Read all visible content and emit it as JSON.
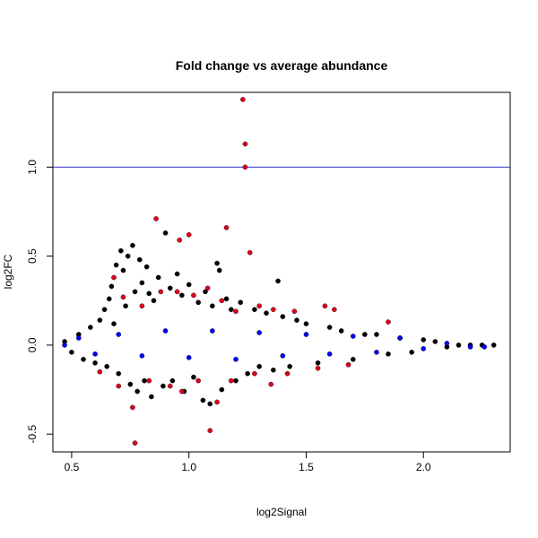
{
  "chart_data": {
    "type": "scatter",
    "title": "Fold change vs average abundance",
    "xlabel": "log2Signal",
    "ylabel": "log2FC",
    "xlim": [
      0.42,
      2.37
    ],
    "ylim": [
      -0.6,
      1.42
    ],
    "xticks": [
      0.5,
      1.0,
      1.5,
      2.0
    ],
    "xtick_labels": [
      "0.5",
      "1.0",
      "1.5",
      "2.0"
    ],
    "yticks": [
      -0.5,
      0.0,
      0.5,
      1.0
    ],
    "ytick_labels": [
      "-0.5",
      "0.0",
      "0.5",
      "1.0"
    ],
    "reference_line": {
      "orientation": "horizontal",
      "y": 1.0,
      "color": "#3333cc"
    },
    "grid": false,
    "legend": "none",
    "colors": {
      "black": "#000000",
      "red": "#e3001b",
      "blue": "#0000ff"
    },
    "series": [
      {
        "color": "black",
        "points": [
          [
            0.47,
            0.02
          ],
          [
            0.5,
            -0.04
          ],
          [
            0.53,
            0.06
          ],
          [
            0.55,
            -0.08
          ],
          [
            0.58,
            0.1
          ],
          [
            0.6,
            -0.1
          ],
          [
            0.62,
            0.14
          ],
          [
            0.64,
            0.2
          ],
          [
            0.65,
            -0.12
          ],
          [
            0.66,
            0.26
          ],
          [
            0.67,
            0.33
          ],
          [
            0.68,
            0.12
          ],
          [
            0.69,
            0.45
          ],
          [
            0.7,
            -0.16
          ],
          [
            0.71,
            0.53
          ],
          [
            0.72,
            0.42
          ],
          [
            0.73,
            0.22
          ],
          [
            0.74,
            0.5
          ],
          [
            0.75,
            -0.22
          ],
          [
            0.76,
            0.56
          ],
          [
            0.77,
            0.3
          ],
          [
            0.78,
            -0.26
          ],
          [
            0.79,
            0.48
          ],
          [
            0.8,
            0.35
          ],
          [
            0.81,
            -0.2
          ],
          [
            0.82,
            0.44
          ],
          [
            0.83,
            0.29
          ],
          [
            0.84,
            -0.29
          ],
          [
            0.85,
            0.25
          ],
          [
            0.87,
            0.38
          ],
          [
            0.89,
            -0.23
          ],
          [
            0.9,
            0.63
          ],
          [
            0.92,
            0.32
          ],
          [
            0.93,
            -0.2
          ],
          [
            0.95,
            0.4
          ],
          [
            0.97,
            0.28
          ],
          [
            0.98,
            -0.26
          ],
          [
            1.0,
            0.34
          ],
          [
            1.02,
            -0.18
          ],
          [
            1.04,
            0.24
          ],
          [
            1.06,
            -0.31
          ],
          [
            1.07,
            0.3
          ],
          [
            1.09,
            -0.33
          ],
          [
            1.1,
            0.22
          ],
          [
            1.12,
            0.46
          ],
          [
            1.13,
            0.42
          ],
          [
            1.14,
            -0.25
          ],
          [
            1.16,
            0.26
          ],
          [
            1.18,
            0.2
          ],
          [
            1.2,
            -0.2
          ],
          [
            1.22,
            0.24
          ],
          [
            1.25,
            -0.16
          ],
          [
            1.28,
            0.2
          ],
          [
            1.3,
            -0.12
          ],
          [
            1.33,
            0.18
          ],
          [
            1.36,
            -0.14
          ],
          [
            1.38,
            0.36
          ],
          [
            1.4,
            0.16
          ],
          [
            1.43,
            -0.12
          ],
          [
            1.46,
            0.14
          ],
          [
            1.5,
            0.12
          ],
          [
            1.55,
            -0.1
          ],
          [
            1.6,
            0.1
          ],
          [
            1.65,
            0.08
          ],
          [
            1.7,
            -0.08
          ],
          [
            1.75,
            0.06
          ],
          [
            1.8,
            0.06
          ],
          [
            1.85,
            -0.05
          ],
          [
            1.9,
            0.04
          ],
          [
            1.95,
            -0.04
          ],
          [
            2.0,
            0.03
          ],
          [
            2.05,
            0.02
          ],
          [
            2.1,
            -0.01
          ],
          [
            2.15,
            0.0
          ],
          [
            2.2,
            0.0
          ],
          [
            2.25,
            0.0
          ],
          [
            2.3,
            0.0
          ]
        ]
      },
      {
        "color": "red",
        "points": [
          [
            1.23,
            1.38
          ],
          [
            1.24,
            1.13
          ],
          [
            1.24,
            1.0
          ],
          [
            0.86,
            0.71
          ],
          [
            1.16,
            0.66
          ],
          [
            1.0,
            0.62
          ],
          [
            0.96,
            0.59
          ],
          [
            1.26,
            0.52
          ],
          [
            0.68,
            0.38
          ],
          [
            0.72,
            0.27
          ],
          [
            0.8,
            0.22
          ],
          [
            0.88,
            0.3
          ],
          [
            0.95,
            0.3
          ],
          [
            1.02,
            0.28
          ],
          [
            1.08,
            0.32
          ],
          [
            1.14,
            0.25
          ],
          [
            1.2,
            0.19
          ],
          [
            1.3,
            0.22
          ],
          [
            1.36,
            0.2
          ],
          [
            1.45,
            0.19
          ],
          [
            1.58,
            0.22
          ],
          [
            1.62,
            0.2
          ],
          [
            1.85,
            0.13
          ],
          [
            0.62,
            -0.15
          ],
          [
            0.7,
            -0.23
          ],
          [
            0.76,
            -0.35
          ],
          [
            0.77,
            -0.55
          ],
          [
            0.83,
            -0.2
          ],
          [
            0.92,
            -0.23
          ],
          [
            0.97,
            -0.26
          ],
          [
            1.04,
            -0.2
          ],
          [
            1.09,
            -0.48
          ],
          [
            1.12,
            -0.32
          ],
          [
            1.18,
            -0.2
          ],
          [
            1.28,
            -0.16
          ],
          [
            1.35,
            -0.22
          ],
          [
            1.42,
            -0.16
          ],
          [
            1.55,
            -0.13
          ],
          [
            1.68,
            -0.11
          ]
        ]
      },
      {
        "color": "blue",
        "points": [
          [
            0.47,
            0.0
          ],
          [
            0.53,
            0.04
          ],
          [
            0.6,
            -0.05
          ],
          [
            0.7,
            0.06
          ],
          [
            0.8,
            -0.06
          ],
          [
            0.9,
            0.08
          ],
          [
            1.0,
            -0.07
          ],
          [
            1.1,
            0.08
          ],
          [
            1.2,
            -0.08
          ],
          [
            1.3,
            0.07
          ],
          [
            1.4,
            -0.06
          ],
          [
            1.5,
            0.06
          ],
          [
            1.6,
            -0.05
          ],
          [
            1.7,
            0.05
          ],
          [
            1.8,
            -0.04
          ],
          [
            1.9,
            0.04
          ],
          [
            2.0,
            -0.02
          ],
          [
            2.1,
            0.01
          ],
          [
            2.2,
            -0.01
          ],
          [
            2.26,
            -0.01
          ]
        ]
      }
    ]
  }
}
